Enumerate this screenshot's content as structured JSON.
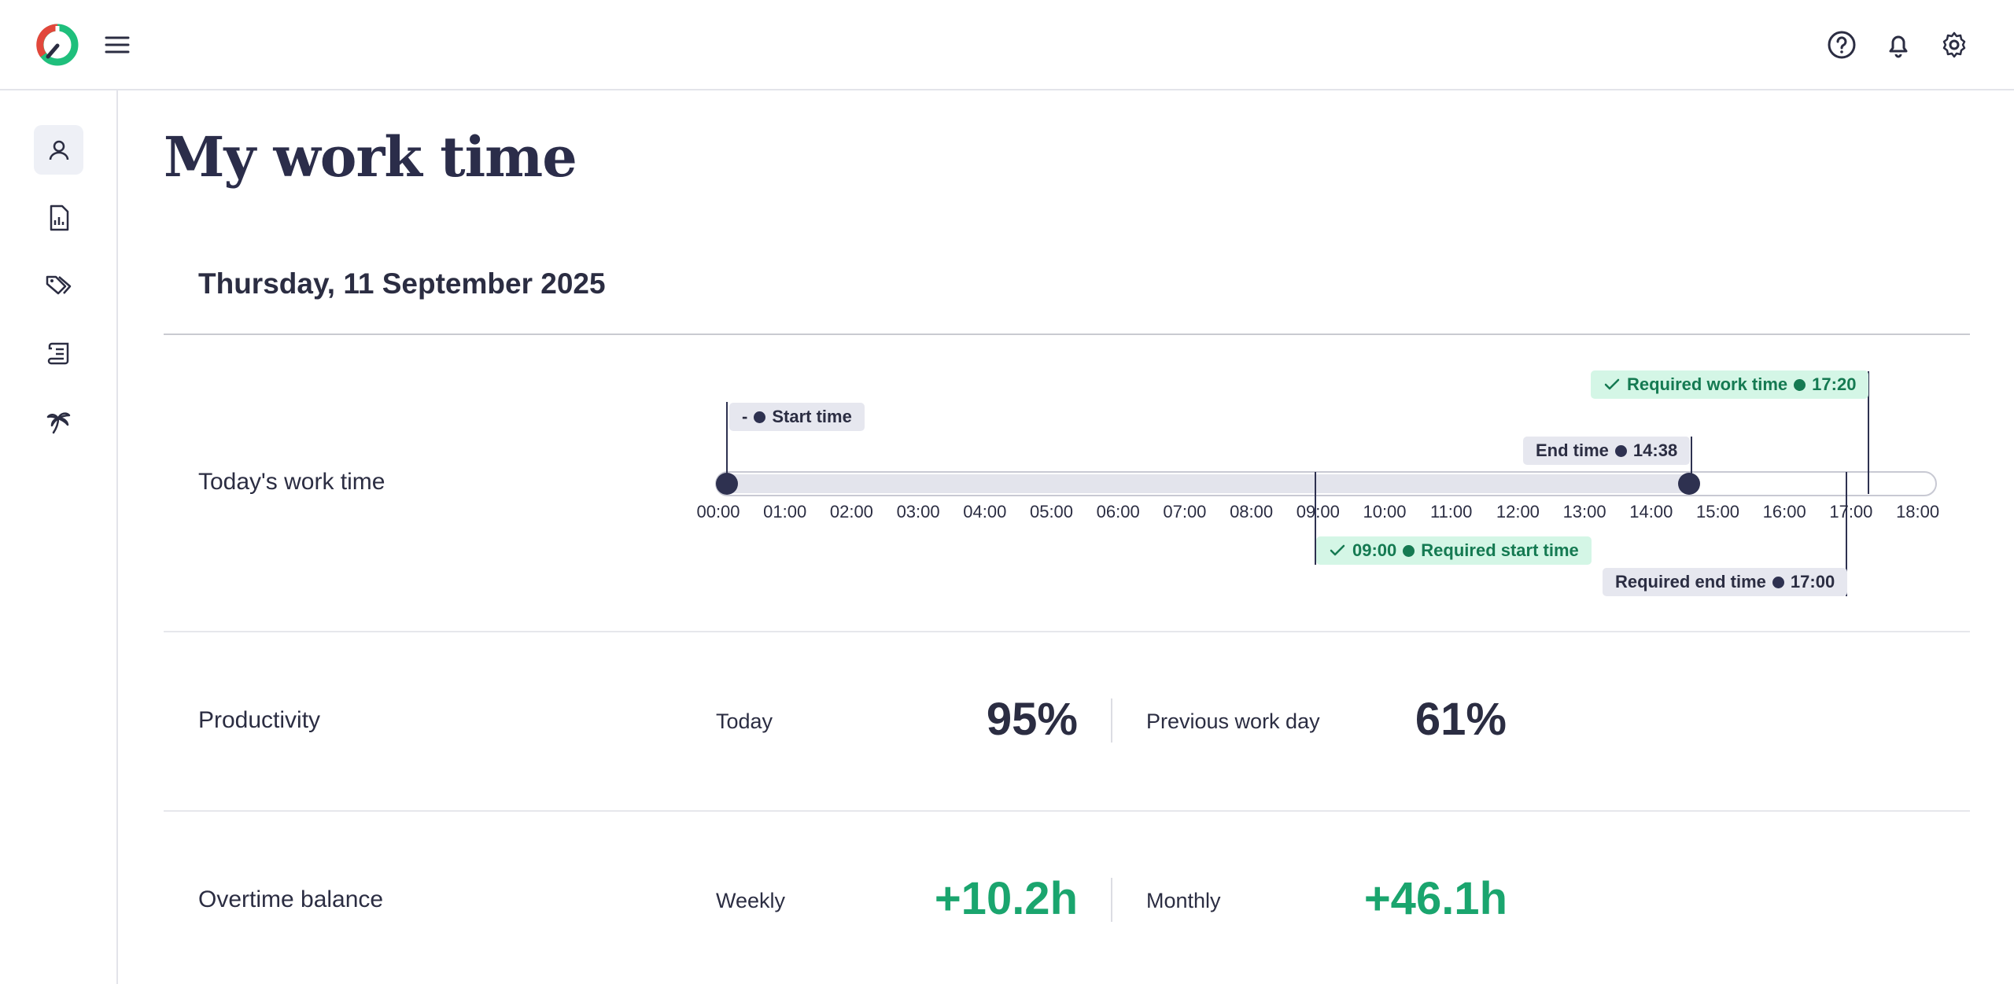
{
  "header": {
    "logo_icon": "clockodo-logo-icon",
    "menu_icon": "hamburger-menu-icon",
    "actions": [
      {
        "name": "help-icon"
      },
      {
        "name": "bell-icon"
      },
      {
        "name": "gear-icon"
      }
    ]
  },
  "sidebar": {
    "items": [
      {
        "icon": "user-icon",
        "active": true
      },
      {
        "icon": "report-icon",
        "active": false
      },
      {
        "icon": "tags-icon",
        "active": false
      },
      {
        "icon": "scroll-icon",
        "active": false
      },
      {
        "icon": "palm-tree-icon",
        "active": false
      }
    ]
  },
  "page": {
    "title": "My work time",
    "date": "Thursday, 11 September 2025"
  },
  "worktime": {
    "label": "Today's work time",
    "ticks": [
      "00:00",
      "01:00",
      "02:00",
      "03:00",
      "04:00",
      "05:00",
      "06:00",
      "07:00",
      "08:00",
      "09:00",
      "10:00",
      "11:00",
      "12:00",
      "13:00",
      "14:00",
      "15:00",
      "16:00",
      "17:00",
      "18:00"
    ],
    "start_tag": {
      "prefix": "-",
      "text": "Start time"
    },
    "end_tag": {
      "text": "End time",
      "time": "14:38"
    },
    "required_work_tag": {
      "text": "Required work time",
      "time": "17:20"
    },
    "required_start_tag": {
      "time": "09:00",
      "text": "Required start time"
    },
    "required_end_tag": {
      "text": "Required end time",
      "time": "17:00"
    },
    "markers_hours": {
      "start": 0,
      "end": 14.633,
      "required_start": 9,
      "required_end": 17,
      "required_work": 17.333
    }
  },
  "productivity": {
    "label": "Productivity",
    "today_label": "Today",
    "today_value": "95%",
    "prev_label": "Previous work day",
    "prev_value": "61%"
  },
  "overtime": {
    "label": "Overtime balance",
    "weekly_label": "Weekly",
    "weekly_value": "+10.2h",
    "monthly_label": "Monthly",
    "monthly_value": "+46.1h"
  },
  "colors": {
    "accent_green": "#1aa56e",
    "text_dark": "#2b2d42",
    "marker": "#2e3150",
    "logo_red": "#e2473b"
  }
}
